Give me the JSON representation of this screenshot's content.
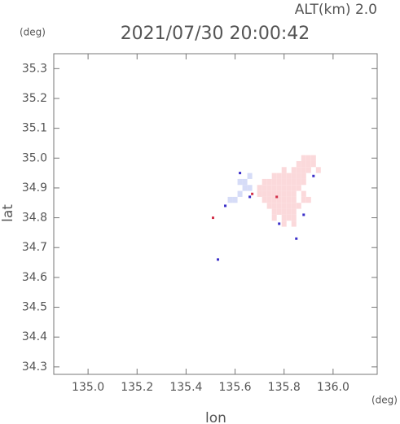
{
  "chart_data": {
    "type": "scatter",
    "title": "2021/07/30 20:00:42",
    "annotation": "ALT(km)  2.0",
    "ylabel": "lat",
    "yunit": "(deg)",
    "xlabel": "lon",
    "xunit": "(deg)",
    "xlim": [
      134.86,
      136.18
    ],
    "ylim": [
      34.275,
      35.35
    ],
    "xticks": [
      {
        "value": 135.0,
        "label": "135.0"
      },
      135.2,
      135.4,
      135.6,
      135.8,
      {
        "value": 136.0,
        "label": "136.0"
      }
    ],
    "yticks": [
      34.3,
      34.4,
      34.5,
      34.6,
      34.7,
      34.8,
      34.9,
      {
        "value": 35.0,
        "label": "35.0"
      },
      35.1,
      35.2,
      35.3
    ],
    "series": [
      {
        "color": "#fbd9db",
        "x": [
          135.88,
          135.9,
          135.92,
          135.86,
          135.88,
          135.9,
          135.92,
          135.8,
          135.84,
          135.86,
          135.88,
          135.9,
          135.94,
          135.76,
          135.78,
          135.8,
          135.82,
          135.84,
          135.86,
          135.88,
          135.72,
          135.74,
          135.76,
          135.78,
          135.8,
          135.82,
          135.84,
          135.86,
          135.88,
          135.7,
          135.72,
          135.74,
          135.76,
          135.78,
          135.8,
          135.82,
          135.84,
          135.86,
          135.7,
          135.72,
          135.74,
          135.76,
          135.78,
          135.8,
          135.82,
          135.84,
          135.88,
          135.72,
          135.74,
          135.76,
          135.78,
          135.8,
          135.82,
          135.84,
          135.88,
          135.9,
          135.74,
          135.76,
          135.78,
          135.8,
          135.82,
          135.84,
          135.86,
          135.76,
          135.78,
          135.8,
          135.82,
          135.84,
          135.76,
          135.8,
          135.82,
          135.84,
          135.8,
          135.84
        ],
        "values": [
          35.0,
          35.0,
          35.0,
          34.98,
          34.98,
          34.98,
          34.98,
          34.96,
          34.96,
          34.96,
          34.96,
          34.96,
          34.96,
          34.94,
          34.94,
          34.94,
          34.94,
          34.94,
          34.94,
          34.94,
          34.92,
          34.92,
          34.92,
          34.92,
          34.92,
          34.92,
          34.92,
          34.92,
          34.92,
          34.9,
          34.9,
          34.9,
          34.9,
          34.9,
          34.9,
          34.9,
          34.9,
          34.9,
          34.88,
          34.88,
          34.88,
          34.88,
          34.88,
          34.88,
          34.88,
          34.88,
          34.88,
          34.86,
          34.86,
          34.86,
          34.86,
          34.86,
          34.86,
          34.86,
          34.86,
          34.86,
          34.84,
          34.84,
          34.84,
          34.84,
          34.84,
          34.84,
          34.84,
          34.82,
          34.82,
          34.82,
          34.82,
          34.82,
          34.8,
          34.8,
          34.8,
          34.8,
          34.78,
          34.78
        ]
      },
      {
        "color": "#d6dcf7",
        "x": [
          135.62,
          135.64,
          135.64,
          135.66,
          135.62,
          135.6,
          135.58,
          135.66
        ],
        "values": [
          34.92,
          34.92,
          34.9,
          34.9,
          34.88,
          34.86,
          34.86,
          34.94
        ]
      },
      {
        "color": "#3b2fc9",
        "x": [
          135.62,
          135.56,
          135.88,
          135.85,
          135.92,
          135.53,
          135.66,
          135.78
        ],
        "values": [
          34.95,
          34.84,
          34.81,
          34.73,
          34.94,
          34.66,
          34.87,
          34.78
        ]
      },
      {
        "color": "#d2304a",
        "x": [
          135.51,
          135.67,
          135.77
        ],
        "values": [
          34.8,
          34.88,
          34.87
        ]
      }
    ]
  }
}
